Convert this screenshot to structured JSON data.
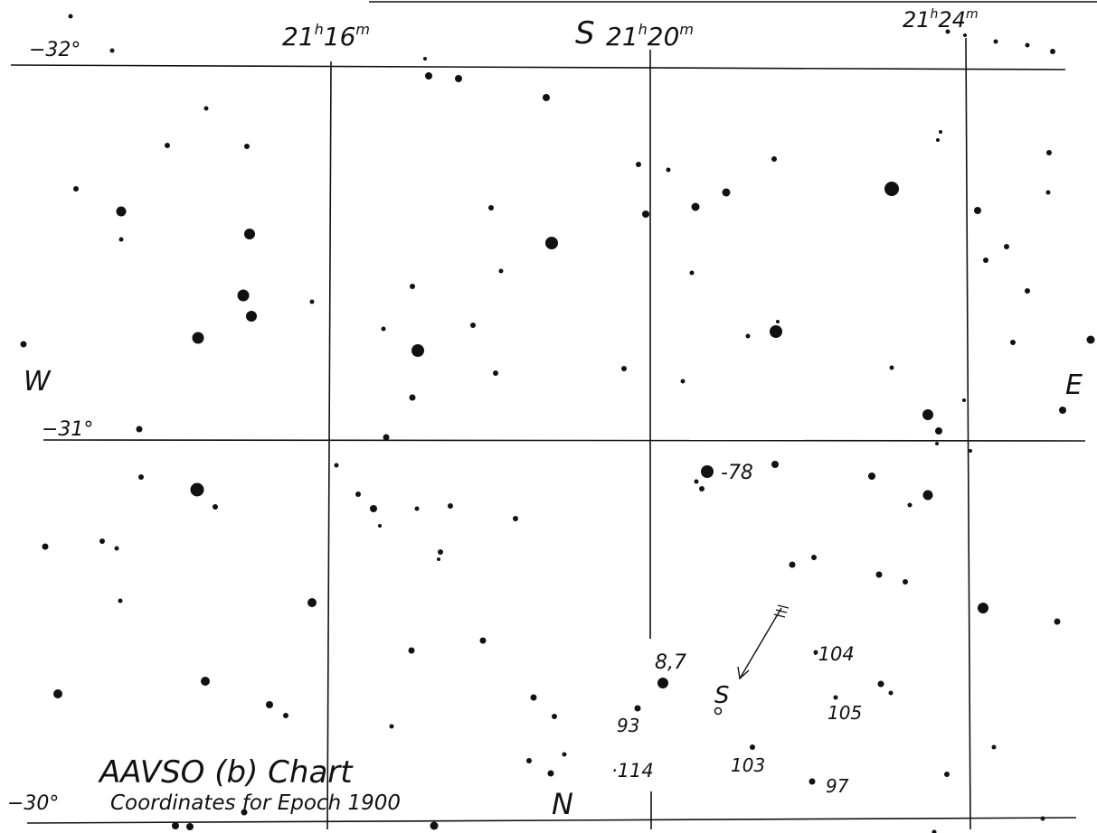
{
  "chart": {
    "title": "AAVSO (b) Chart",
    "subtitle": "Coordinates for Epoch 1900",
    "ra_labels": [
      "21h16m",
      "21h20m",
      "21h24m"
    ],
    "ra_label_parts": {
      "ra_16": {
        "h": "21",
        "m": "16"
      },
      "ra_20": {
        "h": "21",
        "m": "20"
      },
      "ra_24": {
        "h": "21",
        "m": "24"
      }
    },
    "dec_labels": {
      "dec_32": "−32°",
      "dec_31": "−31°",
      "dec_30": "−30°"
    },
    "directions": {
      "south": "S",
      "north": "N",
      "west": "W",
      "east": "E"
    },
    "variable_star_label": "S",
    "comparison_stars": [
      {
        "id": "78",
        "label": "-78"
      },
      {
        "id": "87",
        "label": "8,7"
      },
      {
        "id": "93",
        "label": "93"
      },
      {
        "id": "114",
        "label": "·114"
      },
      {
        "id": "103",
        "label": "103"
      },
      {
        "id": "104",
        "label": "·104"
      },
      {
        "id": "105",
        "label": "105"
      },
      {
        "id": "97",
        "label": "97"
      }
    ],
    "colors": {
      "ink": "#111111",
      "paper": "#ffffff"
    }
  }
}
